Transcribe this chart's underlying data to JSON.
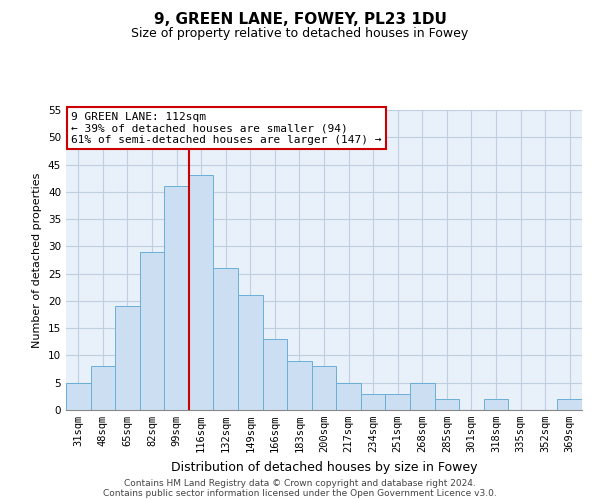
{
  "title": "9, GREEN LANE, FOWEY, PL23 1DU",
  "subtitle": "Size of property relative to detached houses in Fowey",
  "xlabel": "Distribution of detached houses by size in Fowey",
  "ylabel": "Number of detached properties",
  "bar_labels": [
    "31sqm",
    "48sqm",
    "65sqm",
    "82sqm",
    "99sqm",
    "116sqm",
    "132sqm",
    "149sqm",
    "166sqm",
    "183sqm",
    "200sqm",
    "217sqm",
    "234sqm",
    "251sqm",
    "268sqm",
    "285sqm",
    "301sqm",
    "318sqm",
    "335sqm",
    "352sqm",
    "369sqm"
  ],
  "bar_values": [
    5,
    8,
    19,
    29,
    41,
    43,
    26,
    21,
    13,
    9,
    8,
    5,
    3,
    3,
    5,
    2,
    0,
    2,
    0,
    0,
    2
  ],
  "bar_color": "#ccdff2",
  "bar_edge_color": "#6aaed6",
  "vline_x_index": 4.5,
  "annotation_line1": "9 GREEN LANE: 112sqm",
  "annotation_line2": "← 39% of detached houses are smaller (94)",
  "annotation_line3": "61% of semi-detached houses are larger (147) →",
  "annotation_box_facecolor": "#ffffff",
  "annotation_box_edgecolor": "#cc0000",
  "vline_color": "#cc0000",
  "ylim": [
    0,
    55
  ],
  "yticks": [
    0,
    5,
    10,
    15,
    20,
    25,
    30,
    35,
    40,
    45,
    50,
    55
  ],
  "axes_bg_color": "#e8f0fa",
  "fig_bg_color": "#ffffff",
  "grid_color": "#c0cfe0",
  "footnote1": "Contains HM Land Registry data © Crown copyright and database right 2024.",
  "footnote2": "Contains public sector information licensed under the Open Government Licence v3.0.",
  "title_fontsize": 11,
  "subtitle_fontsize": 9,
  "xlabel_fontsize": 9,
  "ylabel_fontsize": 8,
  "tick_fontsize": 7.5,
  "annotation_fontsize": 8,
  "footnote_fontsize": 6.5
}
